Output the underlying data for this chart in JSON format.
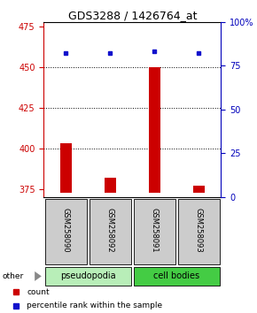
{
  "title": "GDS3288 / 1426764_at",
  "categories": [
    "GSM258090",
    "GSM258092",
    "GSM258091",
    "GSM258093"
  ],
  "bar_values": [
    403,
    382,
    450,
    377
  ],
  "bar_base": 373,
  "percentile_values": [
    82,
    82,
    83,
    82
  ],
  "ylim_left": [
    370,
    478
  ],
  "ylim_right": [
    0,
    100
  ],
  "yticks_left": [
    375,
    400,
    425,
    450,
    475
  ],
  "yticks_right": [
    0,
    25,
    50,
    75,
    100
  ],
  "ytick_labels_right": [
    "0",
    "25",
    "50",
    "75",
    "100%"
  ],
  "bar_color": "#cc0000",
  "dot_color": "#1111cc",
  "grid_values": [
    400,
    425,
    450
  ],
  "groups": [
    {
      "label": "pseudopodia",
      "color": "#b8eeb8",
      "indices": [
        0,
        1
      ]
    },
    {
      "label": "cell bodies",
      "color": "#44cc44",
      "indices": [
        2,
        3
      ]
    }
  ],
  "other_label": "other",
  "legend_items": [
    {
      "color": "#cc0000",
      "label": "count"
    },
    {
      "color": "#1111cc",
      "label": "percentile rank within the sample"
    }
  ],
  "bar_width": 0.25,
  "background_color": "#ffffff",
  "plot_bg": "#ffffff",
  "left_axis_color": "#cc0000",
  "right_axis_color": "#0000bb",
  "title_fontsize": 9,
  "tick_fontsize": 7
}
